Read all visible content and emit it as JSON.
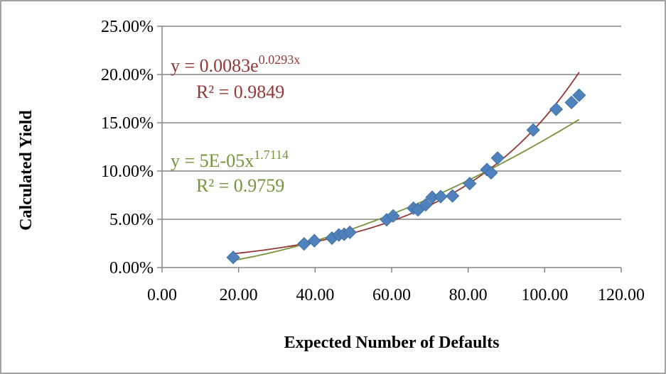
{
  "chart_data": {
    "type": "scatter",
    "title": "",
    "xlabel": "Expected Number of Defaults",
    "ylabel": "Calculated Yield",
    "xlim": [
      0,
      120
    ],
    "ylim": [
      0,
      0.25
    ],
    "x_ticks": [
      0,
      20,
      40,
      60,
      80,
      100,
      120
    ],
    "y_ticks": [
      0,
      0.05,
      0.1,
      0.15,
      0.2,
      0.25
    ],
    "x_tick_labels": [
      "0.00",
      "20.00",
      "40.00",
      "60.00",
      "80.00",
      "100.00",
      "120.00"
    ],
    "y_tick_labels": [
      "0.00%",
      "5.00%",
      "10.00%",
      "15.00%",
      "20.00%",
      "25.00%"
    ],
    "grid": {
      "horizontal": true,
      "vertical": false
    },
    "legend": "none",
    "series": [
      {
        "marker": "diamond",
        "color": "#4F81BD",
        "x": [
          18.6,
          37.1,
          39.8,
          44.4,
          46.2,
          47.6,
          49.1,
          58.7,
          60.4,
          65.7,
          66.9,
          68.9,
          70.6,
          72.8,
          75.9,
          80.4,
          84.9,
          86.0,
          87.7,
          97.0,
          103.0,
          107.0,
          109.0
        ],
        "y": [
          0.0105,
          0.0245,
          0.0278,
          0.0305,
          0.0338,
          0.0345,
          0.0365,
          0.0495,
          0.0535,
          0.0615,
          0.0598,
          0.065,
          0.0728,
          0.0735,
          0.0742,
          0.087,
          0.1015,
          0.0982,
          0.1135,
          0.1425,
          0.164,
          0.171,
          0.1785
        ]
      }
    ],
    "trendlines": [
      {
        "type": "exponential",
        "color": "#953735",
        "a": 0.0083,
        "b": 0.0293,
        "equation_prefix": "y = 0.0083e",
        "equation_exponent": "0.0293x",
        "r2_label": "R² = 0.9849"
      },
      {
        "type": "power",
        "color": "#77933C",
        "a": 5e-05,
        "b": 1.7114,
        "equation_prefix": "y = 5E-05x",
        "equation_exponent": "1.7114",
        "r2_label": "R² = 0.9759"
      }
    ]
  }
}
